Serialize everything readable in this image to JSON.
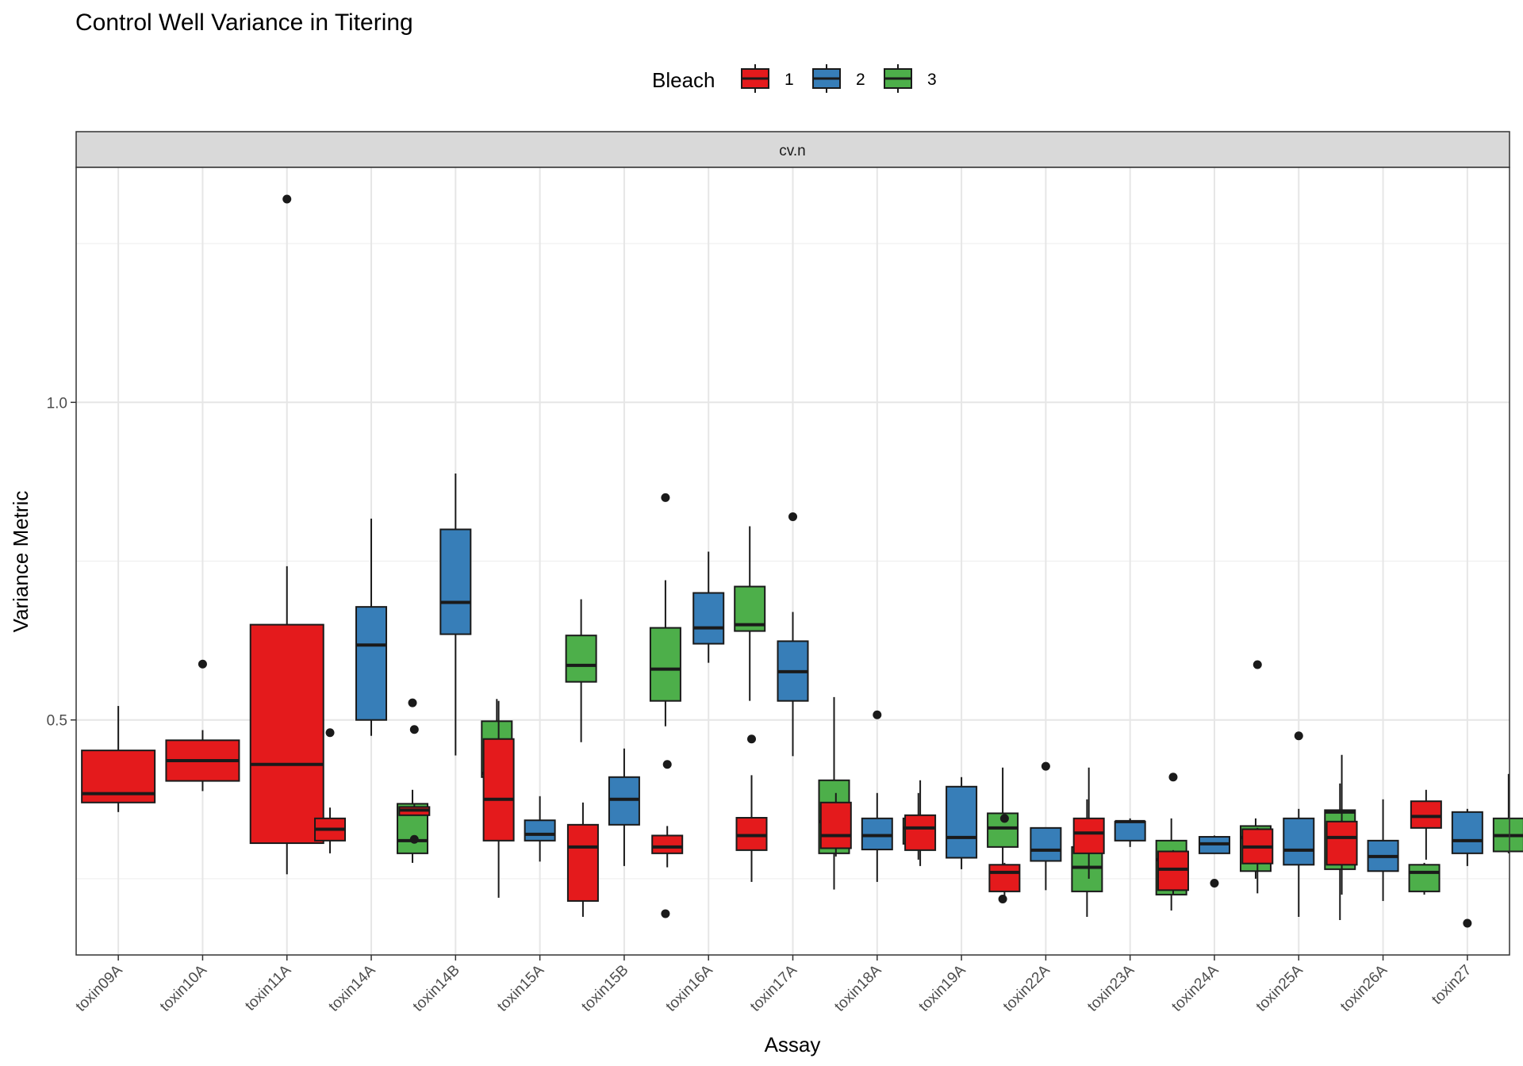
{
  "chart_data": {
    "type": "boxplot",
    "title": "Control Well Variance in Titering",
    "facet": "cv.n",
    "xlabel": "Assay",
    "ylabel": "Variance Metric",
    "ylim": [
      0.13,
      1.37
    ],
    "yticks": [
      0.5,
      1.0
    ],
    "ytick_labels": [
      "0.5",
      "1.0"
    ],
    "grid": true,
    "legend": {
      "title": "Bleach",
      "position": "top",
      "entries": [
        {
          "label": "1",
          "color": "#e41a1c"
        },
        {
          "label": "2",
          "color": "#377eb8"
        },
        {
          "label": "3",
          "color": "#4daf4a"
        }
      ]
    },
    "categories": [
      "toxin09A",
      "toxin10A",
      "toxin11A",
      "toxin14A",
      "toxin14B",
      "toxin15A",
      "toxin15B",
      "toxin16A",
      "toxin17A",
      "toxin18A",
      "toxin19A",
      "toxin22A",
      "toxin23A",
      "toxin24A",
      "toxin25A",
      "toxin26A",
      "toxin27"
    ],
    "boxes": [
      {
        "assay": "toxin09A",
        "bleach": "1",
        "whisker_low": 0.355,
        "q1": 0.37,
        "median": 0.384,
        "q3": 0.452,
        "whisker_high": 0.522,
        "outliers": []
      },
      {
        "assay": "toxin10A",
        "bleach": "1",
        "whisker_low": 0.388,
        "q1": 0.404,
        "median": 0.436,
        "q3": 0.468,
        "whisker_high": 0.484,
        "outliers": [
          0.588
        ]
      },
      {
        "assay": "toxin11A",
        "bleach": "1",
        "whisker_low": 0.257,
        "q1": 0.306,
        "median": 0.43,
        "q3": 0.65,
        "whisker_high": 0.742,
        "outliers": [
          1.32
        ]
      },
      {
        "assay": "toxin14A",
        "bleach": "1",
        "whisker_low": 0.29,
        "q1": 0.31,
        "median": 0.328,
        "q3": 0.345,
        "whisker_high": 0.362,
        "outliers": [
          0.48
        ]
      },
      {
        "assay": "toxin14A",
        "bleach": "2",
        "whisker_low": 0.475,
        "q1": 0.5,
        "median": 0.618,
        "q3": 0.678,
        "whisker_high": 0.817,
        "outliers": []
      },
      {
        "assay": "toxin14A",
        "bleach": "3",
        "whisker_low": 0.275,
        "q1": 0.29,
        "median": 0.31,
        "q3": 0.368,
        "whisker_high": 0.39,
        "outliers": [
          0.527
        ]
      },
      {
        "assay": "toxin14B",
        "bleach": "1",
        "whisker_low": 0.35,
        "q1": 0.35,
        "median": 0.358,
        "q3": 0.363,
        "whisker_high": 0.368,
        "outliers": [
          0.485,
          0.312
        ]
      },
      {
        "assay": "toxin14B",
        "bleach": "2",
        "whisker_low": 0.444,
        "q1": 0.635,
        "median": 0.685,
        "q3": 0.8,
        "whisker_high": 0.888,
        "outliers": []
      },
      {
        "assay": "toxin14B",
        "bleach": "3",
        "whisker_low": 0.352,
        "q1": 0.41,
        "median": 0.416,
        "q3": 0.498,
        "whisker_high": 0.533,
        "outliers": []
      },
      {
        "assay": "toxin15A",
        "bleach": "1",
        "whisker_low": 0.22,
        "q1": 0.31,
        "median": 0.375,
        "q3": 0.47,
        "whisker_high": 0.53,
        "outliers": []
      },
      {
        "assay": "toxin15A",
        "bleach": "2",
        "whisker_low": 0.277,
        "q1": 0.31,
        "median": 0.32,
        "q3": 0.342,
        "whisker_high": 0.38,
        "outliers": []
      },
      {
        "assay": "toxin15A",
        "bleach": "3",
        "whisker_low": 0.465,
        "q1": 0.56,
        "median": 0.586,
        "q3": 0.633,
        "whisker_high": 0.69,
        "outliers": []
      },
      {
        "assay": "toxin15B",
        "bleach": "1",
        "whisker_low": 0.19,
        "q1": 0.215,
        "median": 0.3,
        "q3": 0.335,
        "whisker_high": 0.37,
        "outliers": []
      },
      {
        "assay": "toxin15B",
        "bleach": "2",
        "whisker_low": 0.27,
        "q1": 0.335,
        "median": 0.375,
        "q3": 0.41,
        "whisker_high": 0.455,
        "outliers": []
      },
      {
        "assay": "toxin15B",
        "bleach": "3",
        "whisker_low": 0.49,
        "q1": 0.53,
        "median": 0.58,
        "q3": 0.645,
        "whisker_high": 0.72,
        "outliers": [
          0.85,
          0.195
        ]
      },
      {
        "assay": "toxin16A",
        "bleach": "1",
        "whisker_low": 0.268,
        "q1": 0.29,
        "median": 0.3,
        "q3": 0.318,
        "whisker_high": 0.333,
        "outliers": [
          0.43
        ]
      },
      {
        "assay": "toxin16A",
        "bleach": "2",
        "whisker_low": 0.59,
        "q1": 0.62,
        "median": 0.645,
        "q3": 0.7,
        "whisker_high": 0.765,
        "outliers": []
      },
      {
        "assay": "toxin16A",
        "bleach": "3",
        "whisker_low": 0.53,
        "q1": 0.64,
        "median": 0.65,
        "q3": 0.71,
        "whisker_high": 0.805,
        "outliers": []
      },
      {
        "assay": "toxin17A",
        "bleach": "1",
        "whisker_low": 0.245,
        "q1": 0.295,
        "median": 0.318,
        "q3": 0.346,
        "whisker_high": 0.413,
        "outliers": [
          0.47
        ]
      },
      {
        "assay": "toxin17A",
        "bleach": "2",
        "whisker_low": 0.443,
        "q1": 0.53,
        "median": 0.576,
        "q3": 0.624,
        "whisker_high": 0.67,
        "outliers": [
          0.82
        ]
      },
      {
        "assay": "toxin17A",
        "bleach": "3",
        "whisker_low": 0.233,
        "q1": 0.29,
        "median": 0.34,
        "q3": 0.405,
        "whisker_high": 0.536,
        "outliers": []
      },
      {
        "assay": "toxin18A",
        "bleach": "1",
        "whisker_low": 0.285,
        "q1": 0.298,
        "median": 0.318,
        "q3": 0.37,
        "whisker_high": 0.385,
        "outliers": []
      },
      {
        "assay": "toxin18A",
        "bleach": "2",
        "whisker_low": 0.245,
        "q1": 0.296,
        "median": 0.318,
        "q3": 0.345,
        "whisker_high": 0.385,
        "outliers": [
          0.508
        ]
      },
      {
        "assay": "toxin18A",
        "bleach": "3",
        "whisker_low": 0.28,
        "q1": 0.305,
        "median": 0.33,
        "q3": 0.345,
        "whisker_high": 0.385,
        "outliers": []
      },
      {
        "assay": "toxin19A",
        "bleach": "1",
        "whisker_low": 0.27,
        "q1": 0.295,
        "median": 0.33,
        "q3": 0.35,
        "whisker_high": 0.405,
        "outliers": []
      },
      {
        "assay": "toxin19A",
        "bleach": "2",
        "whisker_low": 0.265,
        "q1": 0.283,
        "median": 0.315,
        "q3": 0.395,
        "whisker_high": 0.41,
        "outliers": []
      },
      {
        "assay": "toxin19A",
        "bleach": "3",
        "whisker_low": 0.25,
        "q1": 0.3,
        "median": 0.33,
        "q3": 0.353,
        "whisker_high": 0.425,
        "outliers": [
          0.218
        ]
      },
      {
        "assay": "toxin22A",
        "bleach": "1",
        "whisker_low": 0.215,
        "q1": 0.23,
        "median": 0.26,
        "q3": 0.272,
        "whisker_high": 0.275,
        "outliers": [
          0.345
        ]
      },
      {
        "assay": "toxin22A",
        "bleach": "2",
        "whisker_low": 0.232,
        "q1": 0.278,
        "median": 0.295,
        "q3": 0.33,
        "whisker_high": 0.33,
        "outliers": [
          0.427
        ]
      },
      {
        "assay": "toxin22A",
        "bleach": "3",
        "whisker_low": 0.19,
        "q1": 0.23,
        "median": 0.268,
        "q3": 0.3,
        "whisker_high": 0.375,
        "outliers": []
      },
      {
        "assay": "toxin23A",
        "bleach": "1",
        "whisker_low": 0.25,
        "q1": 0.29,
        "median": 0.322,
        "q3": 0.345,
        "whisker_high": 0.425,
        "outliers": []
      },
      {
        "assay": "toxin23A",
        "bleach": "2",
        "whisker_low": 0.3,
        "q1": 0.31,
        "median": 0.34,
        "q3": 0.34,
        "whisker_high": 0.345,
        "outliers": []
      },
      {
        "assay": "toxin23A",
        "bleach": "3",
        "whisker_low": 0.2,
        "q1": 0.225,
        "median": 0.28,
        "q3": 0.31,
        "whisker_high": 0.345,
        "outliers": []
      },
      {
        "assay": "toxin24A",
        "bleach": "1",
        "whisker_low": 0.225,
        "q1": 0.232,
        "median": 0.265,
        "q3": 0.293,
        "whisker_high": 0.295,
        "outliers": [
          0.41
        ]
      },
      {
        "assay": "toxin24A",
        "bleach": "2",
        "whisker_low": 0.29,
        "q1": 0.29,
        "median": 0.305,
        "q3": 0.316,
        "whisker_high": 0.318,
        "outliers": [
          0.243
        ]
      },
      {
        "assay": "toxin24A",
        "bleach": "3",
        "whisker_low": 0.25,
        "q1": 0.262,
        "median": 0.315,
        "q3": 0.333,
        "whisker_high": 0.345,
        "outliers": []
      },
      {
        "assay": "toxin25A",
        "bleach": "1",
        "whisker_low": 0.227,
        "q1": 0.274,
        "median": 0.3,
        "q3": 0.328,
        "whisker_high": 0.33,
        "outliers": [
          0.587
        ]
      },
      {
        "assay": "toxin25A",
        "bleach": "2",
        "whisker_low": 0.19,
        "q1": 0.272,
        "median": 0.295,
        "q3": 0.345,
        "whisker_high": 0.36,
        "outliers": [
          0.475
        ]
      },
      {
        "assay": "toxin25A",
        "bleach": "3",
        "whisker_low": 0.185,
        "q1": 0.265,
        "median": 0.355,
        "q3": 0.358,
        "whisker_high": 0.4,
        "outliers": []
      },
      {
        "assay": "toxin26A",
        "bleach": "1",
        "whisker_low": 0.225,
        "q1": 0.272,
        "median": 0.315,
        "q3": 0.34,
        "whisker_high": 0.445,
        "outliers": []
      },
      {
        "assay": "toxin26A",
        "bleach": "2",
        "whisker_low": 0.215,
        "q1": 0.262,
        "median": 0.285,
        "q3": 0.31,
        "whisker_high": 0.375,
        "outliers": []
      },
      {
        "assay": "toxin26A",
        "bleach": "3",
        "whisker_low": 0.225,
        "q1": 0.23,
        "median": 0.26,
        "q3": 0.272,
        "whisker_high": 0.275,
        "outliers": []
      },
      {
        "assay": "toxin27",
        "bleach": "1",
        "whisker_low": 0.28,
        "q1": 0.33,
        "median": 0.348,
        "q3": 0.372,
        "whisker_high": 0.39,
        "outliers": []
      },
      {
        "assay": "toxin27",
        "bleach": "2",
        "whisker_low": 0.27,
        "q1": 0.29,
        "median": 0.31,
        "q3": 0.355,
        "whisker_high": 0.36,
        "outliers": [
          0.18
        ]
      },
      {
        "assay": "toxin27",
        "bleach": "3",
        "whisker_low": 0.29,
        "q1": 0.293,
        "median": 0.318,
        "q3": 0.345,
        "whisker_high": 0.415,
        "outliers": []
      }
    ]
  }
}
